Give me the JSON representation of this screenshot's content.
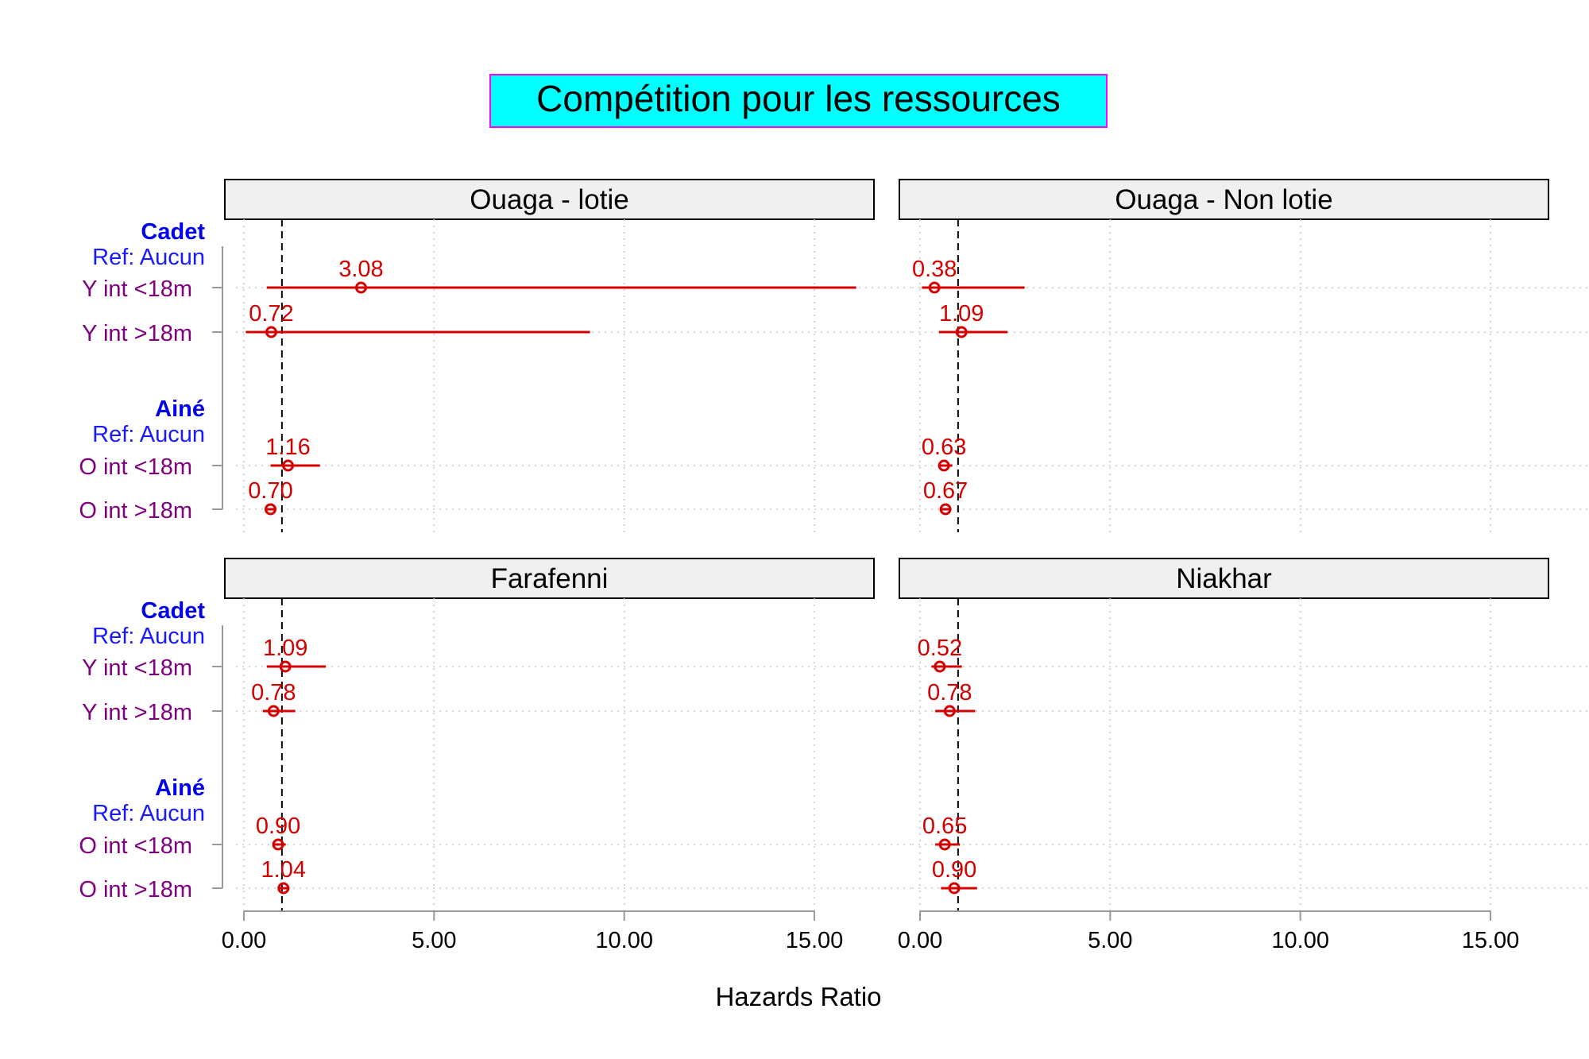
{
  "chart_data": {
    "type": "forest",
    "title": "Compétition pour les ressources",
    "xlabel": "Hazards Ratio",
    "xlim": [
      0,
      16.5
    ],
    "x_ticks": [
      "0.00",
      "5.00",
      "10.00",
      "15.00"
    ],
    "x_tick_values": [
      0,
      5,
      10,
      15
    ],
    "reference_line": 1,
    "grid": true,
    "colors": {
      "title_bg": "#00ffff",
      "title_border": "#ff00ff",
      "strip_bg": "#f0f0f0",
      "estimate": "#d40000",
      "group_header": "#0000ee",
      "reference_label": "#1a1aff",
      "row_label": "#800080",
      "grid": "#c8c8c8",
      "axis": "#999999"
    },
    "row_labels": [
      {
        "text": "Cadet",
        "kind": "group"
      },
      {
        "text": "Ref: Aucun",
        "kind": "ref"
      },
      {
        "text": "Y int <18m",
        "kind": "row"
      },
      {
        "text": "Y int >18m",
        "kind": "row"
      },
      {
        "text": "Ainé",
        "kind": "group"
      },
      {
        "text": "Ref: Aucun",
        "kind": "ref"
      },
      {
        "text": "O int <18m",
        "kind": "row"
      },
      {
        "text": "O int >18m",
        "kind": "row"
      }
    ],
    "panels": [
      {
        "name": "Ouaga - lotie",
        "rows": [
          {
            "label": "Y int <18m",
            "hr": 3.08,
            "text": "3.08",
            "lower": 0.6,
            "upper": 16.1
          },
          {
            "label": "Y int >18m",
            "hr": 0.72,
            "text": "0.72",
            "lower": 0.05,
            "upper": 9.1
          },
          {
            "label": "O int <18m",
            "hr": 1.16,
            "text": "1.16",
            "lower": 0.7,
            "upper": 2.0
          },
          {
            "label": "O int >18m",
            "hr": 0.7,
            "text": "0.70",
            "lower": 0.6,
            "upper": 0.85
          }
        ]
      },
      {
        "name": "Ouaga - Non lotie",
        "rows": [
          {
            "label": "Y int <18m",
            "hr": 0.38,
            "text": "0.38",
            "lower": 0.05,
            "upper": 2.75
          },
          {
            "label": "Y int >18m",
            "hr": 1.09,
            "text": "1.09",
            "lower": 0.5,
            "upper": 2.3
          },
          {
            "label": "O int <18m",
            "hr": 0.63,
            "text": "0.63",
            "lower": 0.5,
            "upper": 0.85
          },
          {
            "label": "O int >18m",
            "hr": 0.67,
            "text": "0.67",
            "lower": 0.55,
            "upper": 0.82
          }
        ]
      },
      {
        "name": "Farafenni",
        "rows": [
          {
            "label": "Y int <18m",
            "hr": 1.09,
            "text": "1.09",
            "lower": 0.6,
            "upper": 2.15
          },
          {
            "label": "Y int >18m",
            "hr": 0.78,
            "text": "0.78",
            "lower": 0.5,
            "upper": 1.35
          },
          {
            "label": "O int <18m",
            "hr": 0.9,
            "text": "0.90",
            "lower": 0.75,
            "upper": 1.1
          },
          {
            "label": "O int >18m",
            "hr": 1.04,
            "text": "1.04",
            "lower": 0.9,
            "upper": 1.2
          }
        ]
      },
      {
        "name": "Niakhar",
        "rows": [
          {
            "label": "Y int <18m",
            "hr": 0.52,
            "text": "0.52",
            "lower": 0.3,
            "upper": 1.1
          },
          {
            "label": "Y int >18m",
            "hr": 0.78,
            "text": "0.78",
            "lower": 0.4,
            "upper": 1.45
          },
          {
            "label": "O int <18m",
            "hr": 0.65,
            "text": "0.65",
            "lower": 0.4,
            "upper": 1.05
          },
          {
            "label": "O int >18m",
            "hr": 0.9,
            "text": "0.90",
            "lower": 0.55,
            "upper": 1.5
          }
        ]
      }
    ]
  }
}
